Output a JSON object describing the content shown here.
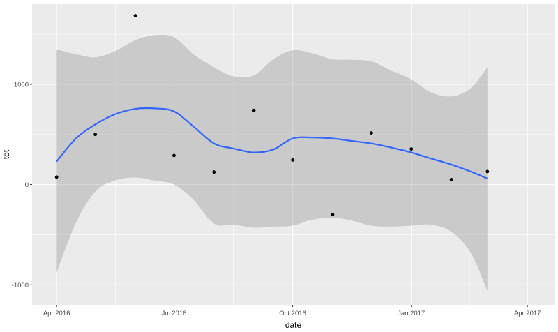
{
  "chart_data": {
    "type": "scatter",
    "xlabel": "date",
    "ylabel": "tot",
    "x_ticks": [
      {
        "date": "2016-04-01",
        "label": "Apr 2016"
      },
      {
        "date": "2016-07-01",
        "label": "Jul 2016"
      },
      {
        "date": "2016-10-01",
        "label": "Oct 2016"
      },
      {
        "date": "2017-01-01",
        "label": "Jan 2017"
      },
      {
        "date": "2017-04-01",
        "label": "Apr 2017"
      }
    ],
    "y_ticks": [
      {
        "value": -1000,
        "label": "-1000"
      },
      {
        "value": 0,
        "label": "0"
      },
      {
        "value": 1000,
        "label": "1000"
      }
    ],
    "xlim": [
      "2016-03-13",
      "2017-04-22"
    ],
    "ylim": [
      -1200,
      1800
    ],
    "grid": true,
    "points": [
      {
        "x": "2016-04-01",
        "y": 75
      },
      {
        "x": "2016-05-01",
        "y": 500
      },
      {
        "x": "2016-06-01",
        "y": 1685
      },
      {
        "x": "2016-07-01",
        "y": 290
      },
      {
        "x": "2016-08-01",
        "y": 125
      },
      {
        "x": "2016-09-01",
        "y": 740
      },
      {
        "x": "2016-10-01",
        "y": 245
      },
      {
        "x": "2016-11-01",
        "y": -300
      },
      {
        "x": "2016-12-01",
        "y": 515
      },
      {
        "x": "2017-01-01",
        "y": 355
      },
      {
        "x": "2017-02-01",
        "y": 50
      },
      {
        "x": "2017-03-01",
        "y": 130
      }
    ],
    "smooth": {
      "x": [
        "2016-04-01",
        "2016-04-16",
        "2016-05-01",
        "2016-05-16",
        "2016-06-01",
        "2016-06-16",
        "2016-07-01",
        "2016-07-16",
        "2016-08-01",
        "2016-08-16",
        "2016-09-01",
        "2016-09-16",
        "2016-10-01",
        "2016-10-16",
        "2016-11-01",
        "2016-11-16",
        "2016-12-01",
        "2016-12-16",
        "2017-01-01",
        "2017-01-16",
        "2017-02-01",
        "2017-02-16",
        "2017-03-01"
      ],
      "fit": [
        230,
        460,
        600,
        700,
        755,
        760,
        730,
        580,
        410,
        360,
        320,
        350,
        460,
        470,
        460,
        435,
        410,
        370,
        320,
        260,
        200,
        130,
        60
      ],
      "upper": [
        1350,
        1300,
        1270,
        1330,
        1440,
        1490,
        1470,
        1300,
        1170,
        1080,
        1090,
        1250,
        1340,
        1310,
        1250,
        1245,
        1230,
        1140,
        1050,
        920,
        880,
        960,
        1170
      ],
      "lower": [
        -880,
        -380,
        -70,
        40,
        70,
        40,
        0,
        -150,
        -390,
        -400,
        -430,
        -420,
        -410,
        -350,
        -330,
        -360,
        -410,
        -420,
        -410,
        -400,
        -470,
        -680,
        -1060
      ]
    },
    "colors": {
      "panel": "#ebebeb",
      "grid_major": "#ffffff",
      "ribbon": "#999999",
      "line": "#3366ff",
      "point": "#000000"
    }
  }
}
